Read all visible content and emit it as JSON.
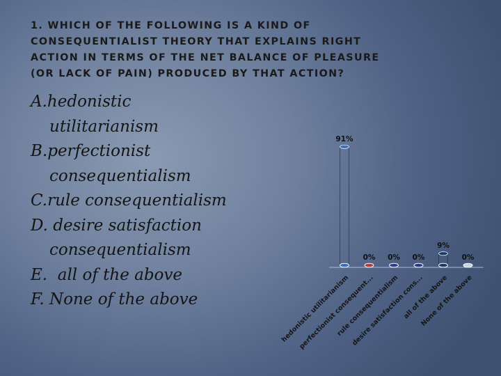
{
  "slide": {
    "title_lines": [
      "1. Which of the following is a kind of",
      "consequentialist theory that explains right",
      "action in terms of the net balance of pleasure",
      "(or lack of pain) produced by that action?"
    ],
    "options": [
      {
        "letter": "A.",
        "lines": [
          "hedonistic",
          "utilitarianism"
        ]
      },
      {
        "letter": "B.",
        "lines": [
          "perfectionist",
          "consequentialism"
        ]
      },
      {
        "letter": "C.",
        "lines": [
          "rule consequentialism"
        ]
      },
      {
        "letter": "D.",
        "lines": [
          "desire satisfaction",
          "consequentialism"
        ]
      },
      {
        "letter": "E.",
        "lines": [
          "all of the above"
        ]
      },
      {
        "letter": "F.",
        "lines": [
          "None of the above"
        ]
      }
    ]
  },
  "chart_data": {
    "type": "bar",
    "categories": [
      "hedonistic utilitarianism",
      "perfectionist consequent...",
      "rule consequentialism",
      "desire satisfaction cons...",
      "all of the above",
      "None of the above"
    ],
    "values": [
      91,
      0,
      0,
      0,
      9,
      0
    ],
    "value_labels": [
      "91%",
      "0%",
      "0%",
      "0%",
      "9%",
      "0%"
    ],
    "ylim": [
      0,
      100
    ],
    "grid": false,
    "legend": "none",
    "bar_colors": [
      "#3e6db7",
      "#b23a3a",
      "#2f3d8f",
      "#2b3a86",
      "#1d3a66",
      "#c8d2e2"
    ],
    "style": "3d-cylinder"
  }
}
